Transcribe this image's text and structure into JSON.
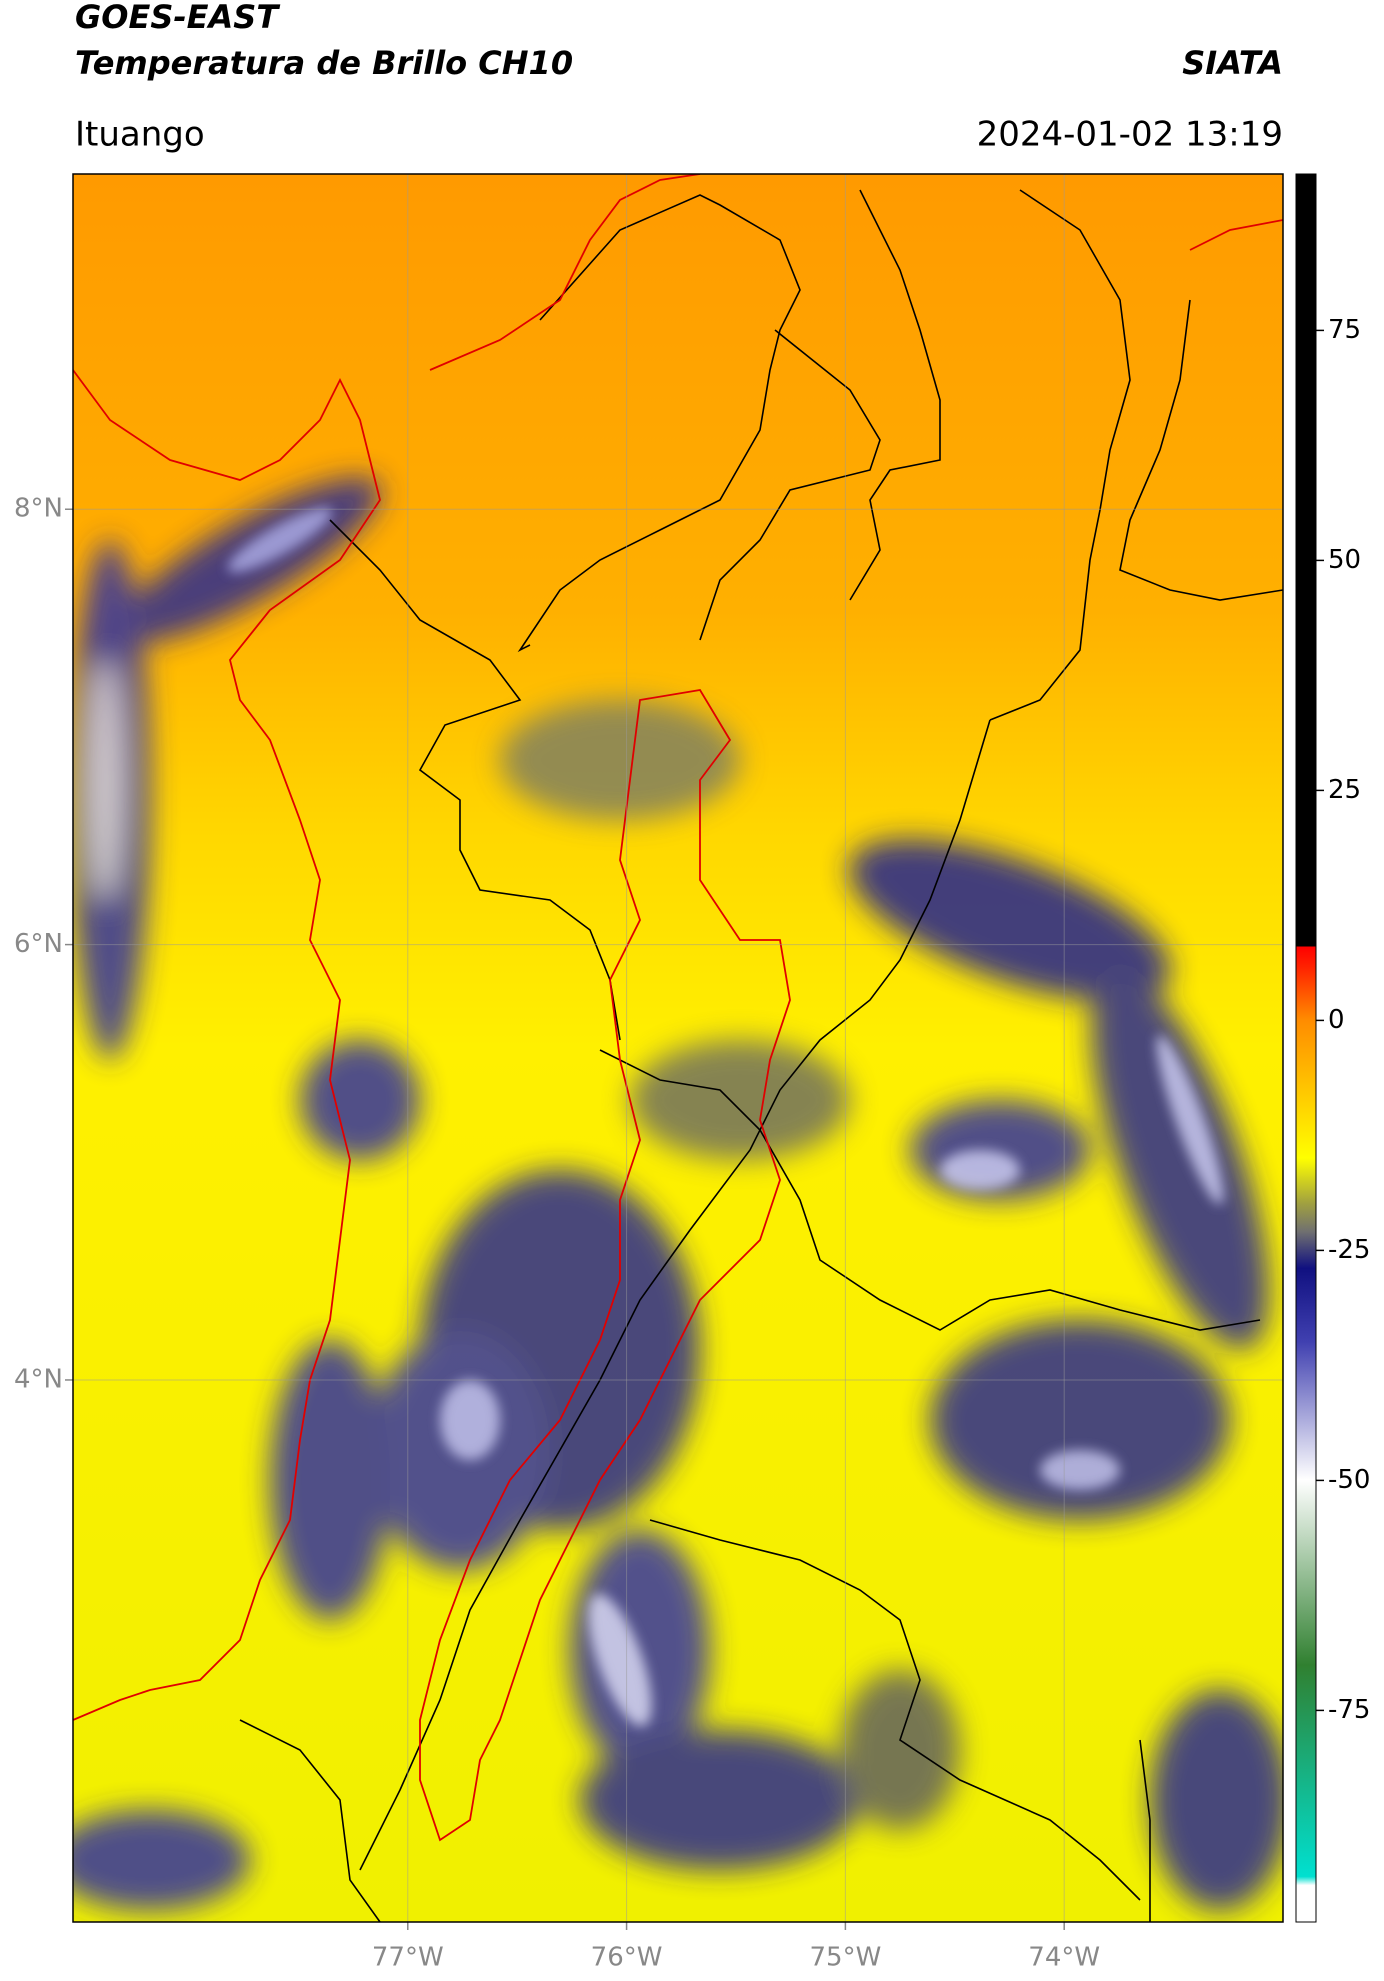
{
  "header": {
    "title": "GOES-EAST",
    "subtitle": "Temperatura de Brillo CH10",
    "brand": "SIATA",
    "location": "Ituango",
    "datetime": "2024-01-02 13:19"
  },
  "map": {
    "xlim": [
      -78.53,
      -73.0
    ],
    "ylim": [
      1.51,
      9.54
    ],
    "xticks": [
      {
        "value": -77,
        "label": "77°W"
      },
      {
        "value": -76,
        "label": "76°W"
      },
      {
        "value": -75,
        "label": "75°W"
      },
      {
        "value": -74,
        "label": "74°W"
      }
    ],
    "yticks": [
      {
        "value": 8,
        "label": "8°N"
      },
      {
        "value": 6,
        "label": "6°N"
      },
      {
        "value": 4,
        "label": "4°N"
      }
    ],
    "grid": true
  },
  "colorbar": {
    "lim": [
      -98,
      92
    ],
    "ticks": [
      -75,
      -50,
      -25,
      0,
      25,
      50,
      75
    ]
  }
}
